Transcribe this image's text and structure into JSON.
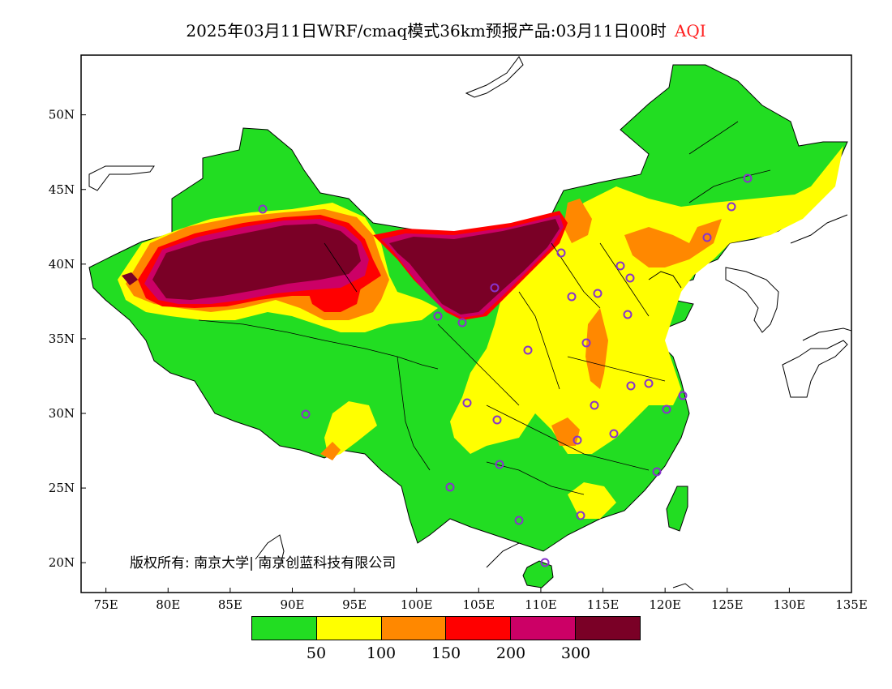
{
  "title": {
    "main": "2025年03月11日WRF/cmaq模式36km预报产品:03月11日00时",
    "variable": "AQI"
  },
  "map": {
    "x_ticks": [
      "75E",
      "80E",
      "85E",
      "90E",
      "95E",
      "100E",
      "105E",
      "110E",
      "115E",
      "120E",
      "125E",
      "130E",
      "135E"
    ],
    "y_ticks": [
      "20N",
      "25N",
      "30N",
      "35N",
      "40N",
      "45N",
      "50N"
    ],
    "lon_range": [
      73,
      135
    ],
    "lat_range": [
      18,
      54
    ],
    "copyright": "版权所有: 南京大学| 南京创蓝科技有限公司"
  },
  "legend": {
    "colors": [
      "#22dd22",
      "#ffff00",
      "#ff8800",
      "#ff0000",
      "#cc0066",
      "#7a0026"
    ],
    "labels": [
      "50",
      "100",
      "150",
      "200",
      "300"
    ]
  },
  "colors": {
    "good": "#22dd22",
    "moderate": "#ffff00",
    "unhealthy_sensitive": "#ff8800",
    "unhealthy": "#ff0000",
    "very_unhealthy": "#cc0066",
    "hazardous": "#7a0026",
    "station_marker": "#8833cc"
  }
}
